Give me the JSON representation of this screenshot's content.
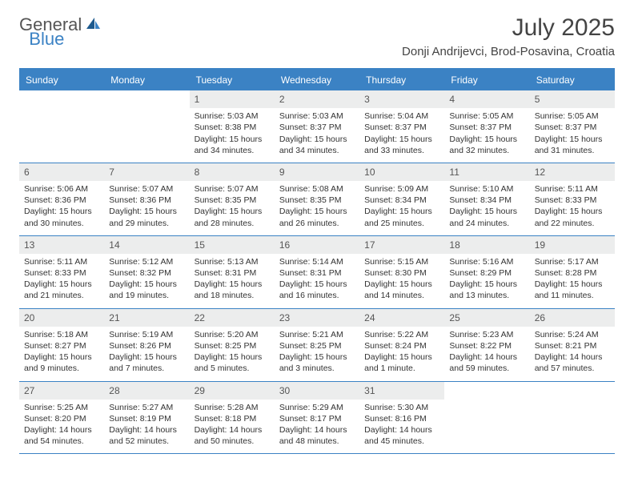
{
  "logo": {
    "general": "General",
    "blue": "Blue"
  },
  "title": "July 2025",
  "location": "Donji Andrijevci, Brod-Posavina, Croatia",
  "colors": {
    "accent": "#3b82c4",
    "header_bg": "#3b82c4",
    "header_text": "#ffffff",
    "daynum_bg": "#eceded",
    "text": "#333333",
    "background": "#ffffff"
  },
  "day_labels": [
    "Sunday",
    "Monday",
    "Tuesday",
    "Wednesday",
    "Thursday",
    "Friday",
    "Saturday"
  ],
  "weeks": [
    [
      {
        "n": "",
        "sr": "",
        "ss": "",
        "dl": ""
      },
      {
        "n": "",
        "sr": "",
        "ss": "",
        "dl": ""
      },
      {
        "n": "1",
        "sr": "Sunrise: 5:03 AM",
        "ss": "Sunset: 8:38 PM",
        "dl": "Daylight: 15 hours and 34 minutes."
      },
      {
        "n": "2",
        "sr": "Sunrise: 5:03 AM",
        "ss": "Sunset: 8:37 PM",
        "dl": "Daylight: 15 hours and 34 minutes."
      },
      {
        "n": "3",
        "sr": "Sunrise: 5:04 AM",
        "ss": "Sunset: 8:37 PM",
        "dl": "Daylight: 15 hours and 33 minutes."
      },
      {
        "n": "4",
        "sr": "Sunrise: 5:05 AM",
        "ss": "Sunset: 8:37 PM",
        "dl": "Daylight: 15 hours and 32 minutes."
      },
      {
        "n": "5",
        "sr": "Sunrise: 5:05 AM",
        "ss": "Sunset: 8:37 PM",
        "dl": "Daylight: 15 hours and 31 minutes."
      }
    ],
    [
      {
        "n": "6",
        "sr": "Sunrise: 5:06 AM",
        "ss": "Sunset: 8:36 PM",
        "dl": "Daylight: 15 hours and 30 minutes."
      },
      {
        "n": "7",
        "sr": "Sunrise: 5:07 AM",
        "ss": "Sunset: 8:36 PM",
        "dl": "Daylight: 15 hours and 29 minutes."
      },
      {
        "n": "8",
        "sr": "Sunrise: 5:07 AM",
        "ss": "Sunset: 8:35 PM",
        "dl": "Daylight: 15 hours and 28 minutes."
      },
      {
        "n": "9",
        "sr": "Sunrise: 5:08 AM",
        "ss": "Sunset: 8:35 PM",
        "dl": "Daylight: 15 hours and 26 minutes."
      },
      {
        "n": "10",
        "sr": "Sunrise: 5:09 AM",
        "ss": "Sunset: 8:34 PM",
        "dl": "Daylight: 15 hours and 25 minutes."
      },
      {
        "n": "11",
        "sr": "Sunrise: 5:10 AM",
        "ss": "Sunset: 8:34 PM",
        "dl": "Daylight: 15 hours and 24 minutes."
      },
      {
        "n": "12",
        "sr": "Sunrise: 5:11 AM",
        "ss": "Sunset: 8:33 PM",
        "dl": "Daylight: 15 hours and 22 minutes."
      }
    ],
    [
      {
        "n": "13",
        "sr": "Sunrise: 5:11 AM",
        "ss": "Sunset: 8:33 PM",
        "dl": "Daylight: 15 hours and 21 minutes."
      },
      {
        "n": "14",
        "sr": "Sunrise: 5:12 AM",
        "ss": "Sunset: 8:32 PM",
        "dl": "Daylight: 15 hours and 19 minutes."
      },
      {
        "n": "15",
        "sr": "Sunrise: 5:13 AM",
        "ss": "Sunset: 8:31 PM",
        "dl": "Daylight: 15 hours and 18 minutes."
      },
      {
        "n": "16",
        "sr": "Sunrise: 5:14 AM",
        "ss": "Sunset: 8:31 PM",
        "dl": "Daylight: 15 hours and 16 minutes."
      },
      {
        "n": "17",
        "sr": "Sunrise: 5:15 AM",
        "ss": "Sunset: 8:30 PM",
        "dl": "Daylight: 15 hours and 14 minutes."
      },
      {
        "n": "18",
        "sr": "Sunrise: 5:16 AM",
        "ss": "Sunset: 8:29 PM",
        "dl": "Daylight: 15 hours and 13 minutes."
      },
      {
        "n": "19",
        "sr": "Sunrise: 5:17 AM",
        "ss": "Sunset: 8:28 PM",
        "dl": "Daylight: 15 hours and 11 minutes."
      }
    ],
    [
      {
        "n": "20",
        "sr": "Sunrise: 5:18 AM",
        "ss": "Sunset: 8:27 PM",
        "dl": "Daylight: 15 hours and 9 minutes."
      },
      {
        "n": "21",
        "sr": "Sunrise: 5:19 AM",
        "ss": "Sunset: 8:26 PM",
        "dl": "Daylight: 15 hours and 7 minutes."
      },
      {
        "n": "22",
        "sr": "Sunrise: 5:20 AM",
        "ss": "Sunset: 8:25 PM",
        "dl": "Daylight: 15 hours and 5 minutes."
      },
      {
        "n": "23",
        "sr": "Sunrise: 5:21 AM",
        "ss": "Sunset: 8:25 PM",
        "dl": "Daylight: 15 hours and 3 minutes."
      },
      {
        "n": "24",
        "sr": "Sunrise: 5:22 AM",
        "ss": "Sunset: 8:24 PM",
        "dl": "Daylight: 15 hours and 1 minute."
      },
      {
        "n": "25",
        "sr": "Sunrise: 5:23 AM",
        "ss": "Sunset: 8:22 PM",
        "dl": "Daylight: 14 hours and 59 minutes."
      },
      {
        "n": "26",
        "sr": "Sunrise: 5:24 AM",
        "ss": "Sunset: 8:21 PM",
        "dl": "Daylight: 14 hours and 57 minutes."
      }
    ],
    [
      {
        "n": "27",
        "sr": "Sunrise: 5:25 AM",
        "ss": "Sunset: 8:20 PM",
        "dl": "Daylight: 14 hours and 54 minutes."
      },
      {
        "n": "28",
        "sr": "Sunrise: 5:27 AM",
        "ss": "Sunset: 8:19 PM",
        "dl": "Daylight: 14 hours and 52 minutes."
      },
      {
        "n": "29",
        "sr": "Sunrise: 5:28 AM",
        "ss": "Sunset: 8:18 PM",
        "dl": "Daylight: 14 hours and 50 minutes."
      },
      {
        "n": "30",
        "sr": "Sunrise: 5:29 AM",
        "ss": "Sunset: 8:17 PM",
        "dl": "Daylight: 14 hours and 48 minutes."
      },
      {
        "n": "31",
        "sr": "Sunrise: 5:30 AM",
        "ss": "Sunset: 8:16 PM",
        "dl": "Daylight: 14 hours and 45 minutes."
      },
      {
        "n": "",
        "sr": "",
        "ss": "",
        "dl": ""
      },
      {
        "n": "",
        "sr": "",
        "ss": "",
        "dl": ""
      }
    ]
  ]
}
